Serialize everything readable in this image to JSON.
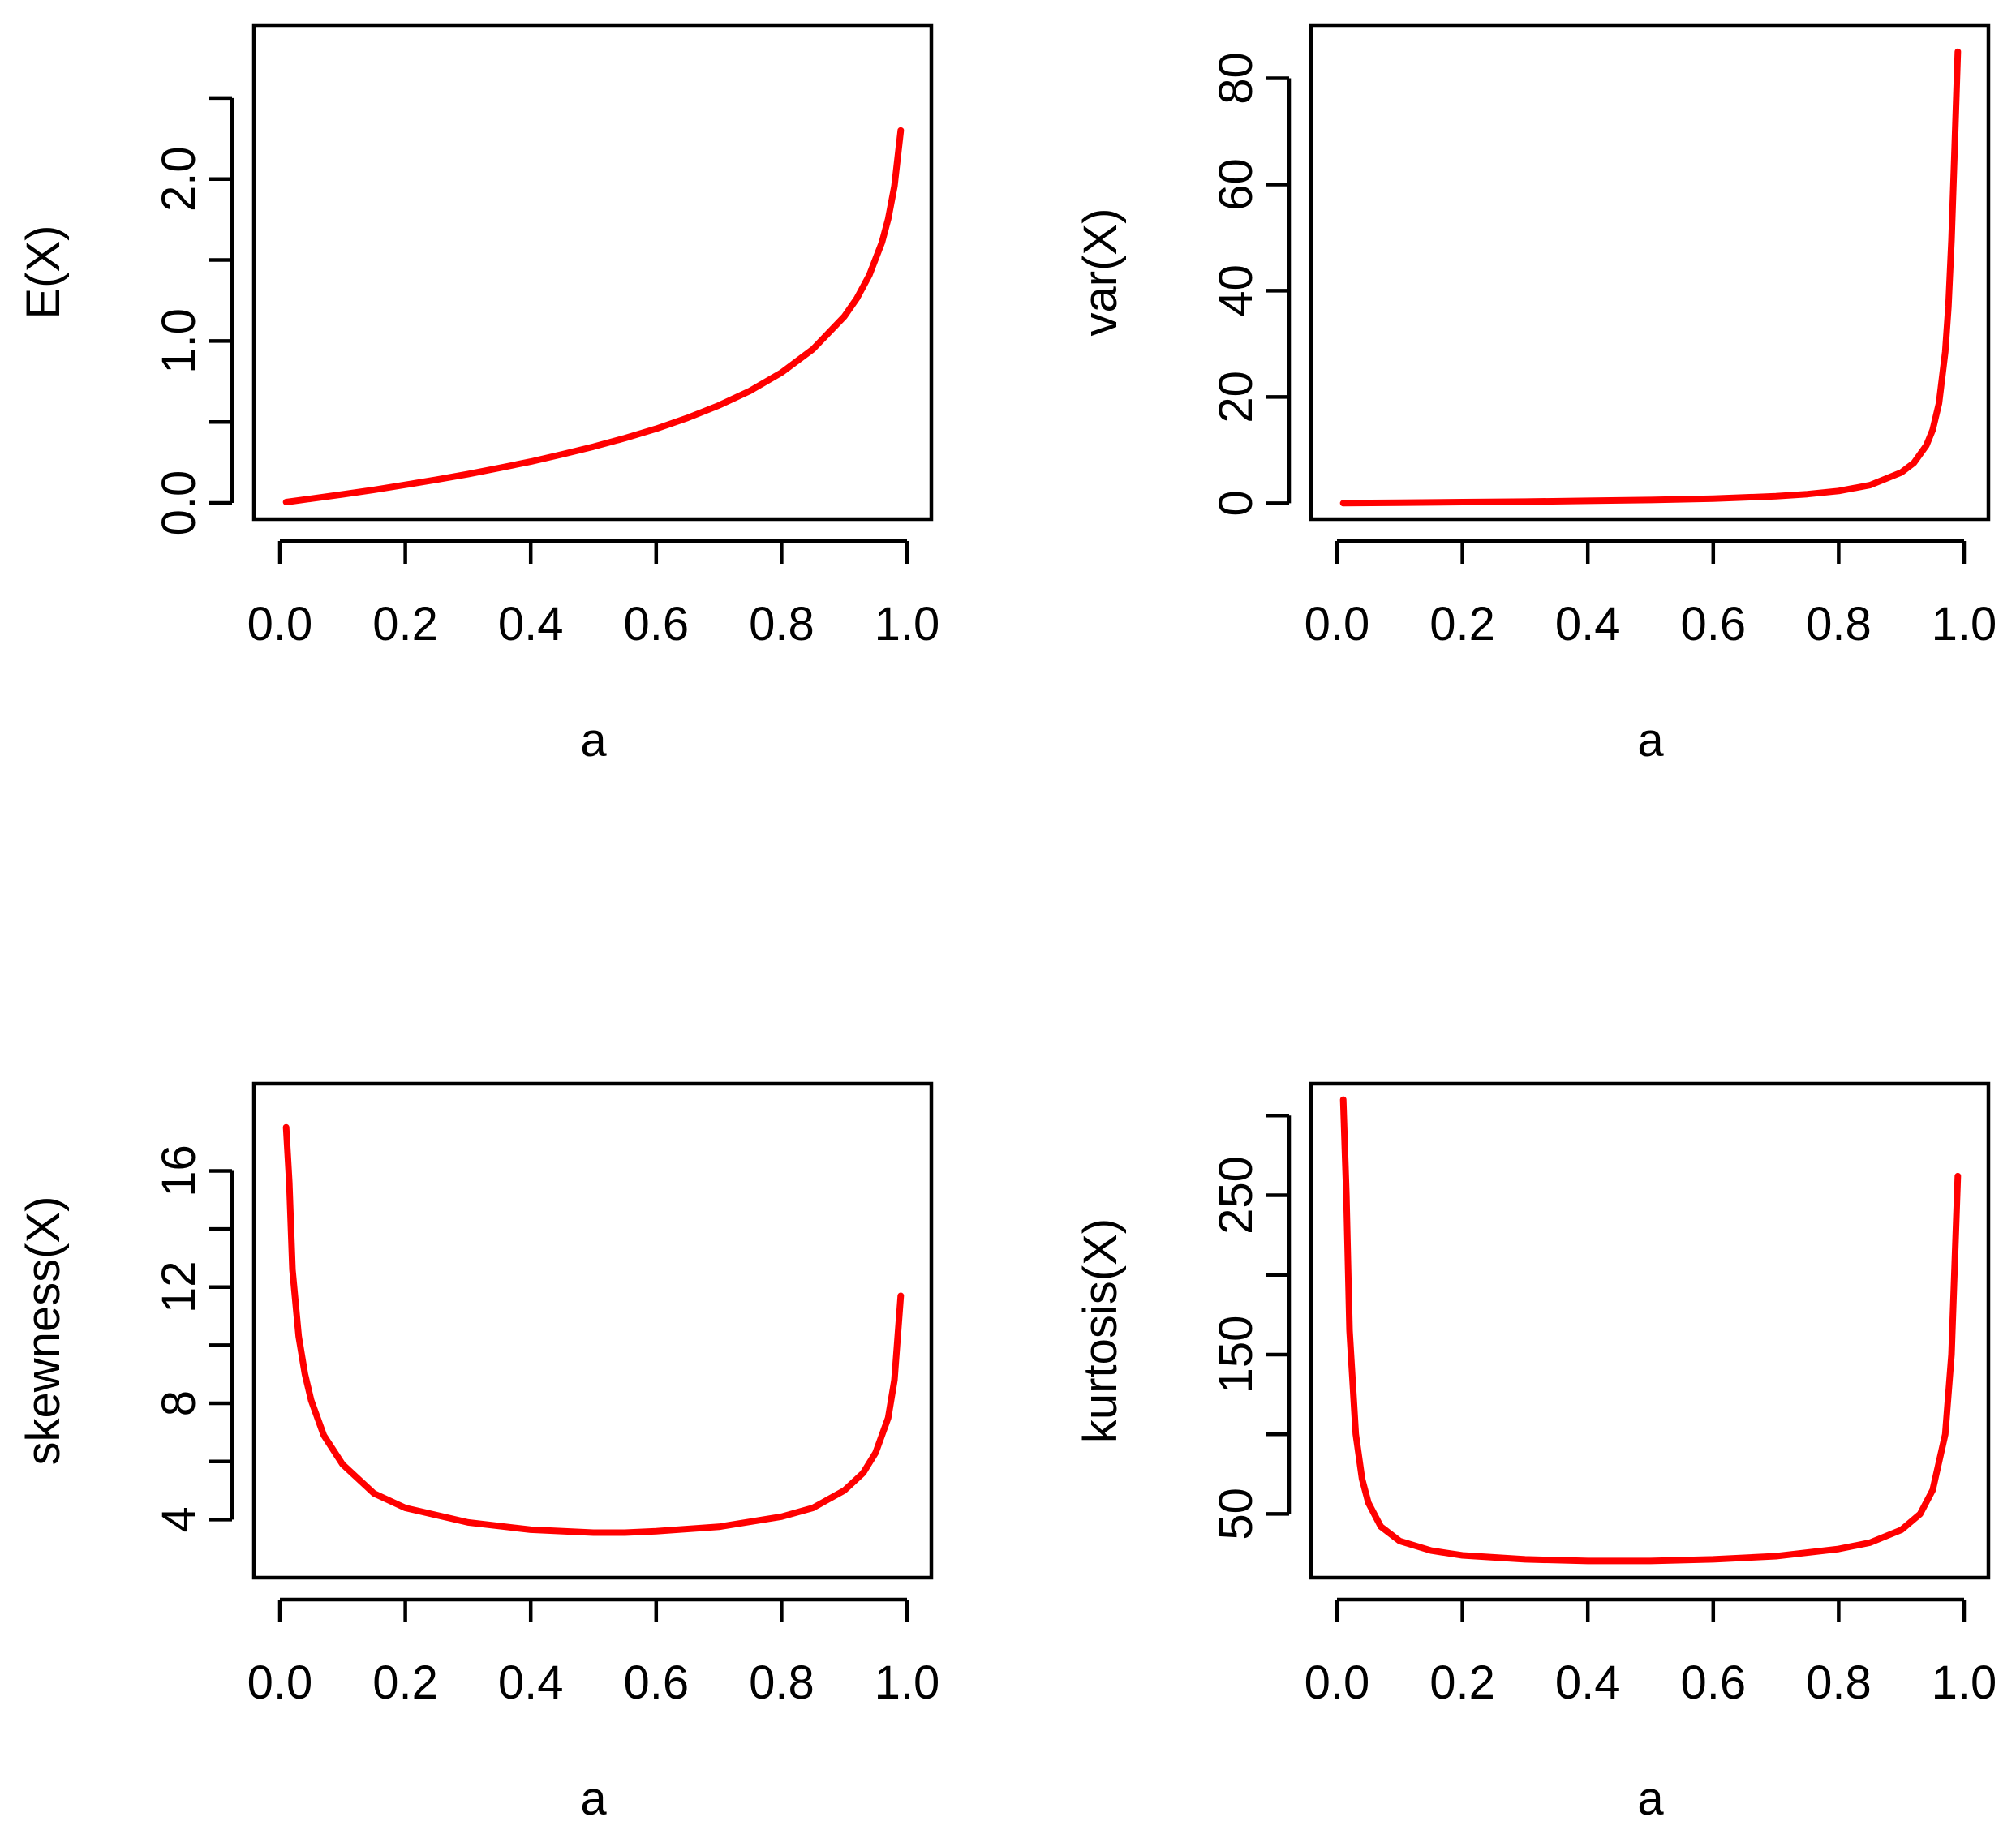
{
  "colors": {
    "line": "#ff0000",
    "axis": "#000000",
    "background": "#ffffff"
  },
  "chart_data": [
    {
      "type": "line",
      "title": "",
      "xlabel": "a",
      "ylabel": "E(X)",
      "xlim": [
        0,
        1
      ],
      "ylim": [
        -0.1,
        2.95
      ],
      "xticks": [
        0.0,
        0.2,
        0.4,
        0.6,
        0.8,
        1.0
      ],
      "xtick_labels": [
        "0.0",
        "0.2",
        "0.4",
        "0.6",
        "0.8",
        "1.0"
      ],
      "yticks": [
        0.0,
        0.5,
        1.0,
        1.5,
        2.0,
        2.5
      ],
      "ytick_labels": [
        "0.0",
        "",
        "1.0",
        "",
        "2.0",
        ""
      ],
      "grid": false,
      "series": [
        {
          "x": [
            0.01,
            0.05,
            0.1,
            0.15,
            0.2,
            0.25,
            0.3,
            0.35,
            0.4,
            0.45,
            0.5,
            0.55,
            0.6,
            0.65,
            0.7,
            0.75,
            0.8,
            0.85,
            0.9,
            0.92,
            0.94,
            0.96,
            0.97,
            0.98,
            0.99
          ],
          "y": [
            0.005,
            0.026,
            0.053,
            0.081,
            0.112,
            0.144,
            0.178,
            0.216,
            0.255,
            0.3,
            0.347,
            0.4,
            0.458,
            0.525,
            0.602,
            0.693,
            0.805,
            0.949,
            1.151,
            1.263,
            1.407,
            1.609,
            1.753,
            1.956,
            2.3
          ]
        }
      ]
    },
    {
      "type": "line",
      "title": "",
      "xlabel": "a",
      "ylabel": "var(X)",
      "xlim": [
        0,
        1
      ],
      "ylim": [
        -3,
        90
      ],
      "xticks": [
        0.0,
        0.2,
        0.4,
        0.6,
        0.8,
        1.0
      ],
      "xtick_labels": [
        "0.0",
        "0.2",
        "0.4",
        "0.6",
        "0.8",
        "1.0"
      ],
      "yticks": [
        0,
        20,
        40,
        60,
        80
      ],
      "ytick_labels": [
        "0",
        "20",
        "40",
        "60",
        "80"
      ],
      "grid": false,
      "series": [
        {
          "x": [
            0.01,
            0.1,
            0.2,
            0.3,
            0.4,
            0.5,
            0.6,
            0.7,
            0.75,
            0.8,
            0.85,
            0.9,
            0.92,
            0.94,
            0.95,
            0.96,
            0.97,
            0.975,
            0.98,
            0.985,
            0.99
          ],
          "y": [
            0.01,
            0.1,
            0.2,
            0.3,
            0.45,
            0.6,
            0.85,
            1.3,
            1.7,
            2.3,
            3.4,
            5.8,
            7.6,
            10.9,
            13.8,
            18.8,
            28.5,
            37,
            49.5,
            67,
            85
          ]
        }
      ]
    },
    {
      "type": "line",
      "title": "",
      "xlabel": "a",
      "ylabel": "skewness(X)",
      "xlim": [
        0,
        1
      ],
      "ylim": [
        2,
        19
      ],
      "xticks": [
        0.0,
        0.2,
        0.4,
        0.6,
        0.8,
        1.0
      ],
      "xtick_labels": [
        "0.0",
        "0.2",
        "0.4",
        "0.6",
        "0.8",
        "1.0"
      ],
      "yticks": [
        4,
        6,
        8,
        10,
        12,
        14,
        16
      ],
      "ytick_labels": [
        "4",
        "",
        "8",
        "",
        "12",
        "",
        "16"
      ],
      "grid": false,
      "series": [
        {
          "x": [
            0.01,
            0.015,
            0.02,
            0.03,
            0.04,
            0.05,
            0.07,
            0.1,
            0.15,
            0.2,
            0.3,
            0.4,
            0.5,
            0.55,
            0.6,
            0.7,
            0.8,
            0.85,
            0.9,
            0.93,
            0.95,
            0.97,
            0.98,
            0.99
          ],
          "y": [
            17.5,
            15.6,
            12.6,
            10.3,
            9.0,
            8.1,
            6.9,
            5.9,
            4.9,
            4.4,
            3.9,
            3.65,
            3.55,
            3.55,
            3.6,
            3.75,
            4.1,
            4.4,
            5.0,
            5.6,
            6.3,
            7.5,
            8.8,
            11.7
          ]
        }
      ]
    },
    {
      "type": "line",
      "title": "",
      "xlabel": "a",
      "ylabel": "kurtosis(X)",
      "xlim": [
        0,
        1
      ],
      "ylim": [
        10,
        320
      ],
      "xticks": [
        0.0,
        0.2,
        0.4,
        0.6,
        0.8,
        1.0
      ],
      "xtick_labels": [
        "0.0",
        "0.2",
        "0.4",
        "0.6",
        "0.8",
        "1.0"
      ],
      "yticks": [
        50,
        100,
        150,
        200,
        250,
        300
      ],
      "ytick_labels": [
        "50",
        "",
        "150",
        "",
        "250",
        ""
      ],
      "grid": false,
      "series": [
        {
          "x": [
            0.01,
            0.015,
            0.02,
            0.03,
            0.04,
            0.05,
            0.07,
            0.1,
            0.15,
            0.2,
            0.3,
            0.4,
            0.5,
            0.6,
            0.7,
            0.8,
            0.85,
            0.9,
            0.93,
            0.95,
            0.97,
            0.98,
            0.99
          ],
          "y": [
            310,
            250,
            165,
            100,
            72,
            57,
            42,
            33,
            27,
            24,
            21.5,
            20.5,
            20.5,
            21.5,
            23.5,
            28,
            32,
            40,
            50,
            65,
            100,
            150,
            262
          ]
        }
      ]
    }
  ]
}
